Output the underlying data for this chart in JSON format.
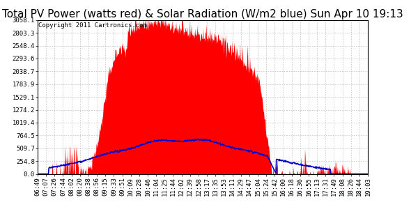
{
  "title": "Total PV Power (watts red) & Solar Radiation (W/m2 blue) Sun Apr 10 19:13",
  "copyright": "Copyright 2011 Cartronics.com",
  "bg_color": "#ffffff",
  "plot_bg_color": "#ffffff",
  "grid_color": "#aaaaaa",
  "red_color": "#ff0000",
  "blue_color": "#0000cc",
  "yticks": [
    0.0,
    254.8,
    509.7,
    764.5,
    1019.4,
    1274.2,
    1529.1,
    1783.9,
    2038.7,
    2293.6,
    2548.4,
    2803.3,
    3058.1
  ],
  "ylim": [
    0,
    3058.1
  ],
  "xtick_labels": [
    "06:49",
    "07:07",
    "07:26",
    "07:44",
    "08:02",
    "08:20",
    "08:38",
    "08:56",
    "09:15",
    "09:33",
    "09:51",
    "10:09",
    "10:28",
    "10:46",
    "11:04",
    "11:25",
    "11:44",
    "12:02",
    "12:39",
    "12:58",
    "13:17",
    "13:35",
    "13:53",
    "14:11",
    "14:29",
    "14:47",
    "15:04",
    "15:24",
    "15:42",
    "16:00",
    "16:18",
    "16:36",
    "16:55",
    "17:13",
    "17:31",
    "17:49",
    "18:08",
    "18:26",
    "18:44",
    "19:03"
  ],
  "title_fontsize": 11,
  "copyright_fontsize": 6.5,
  "tick_fontsize": 6.5
}
